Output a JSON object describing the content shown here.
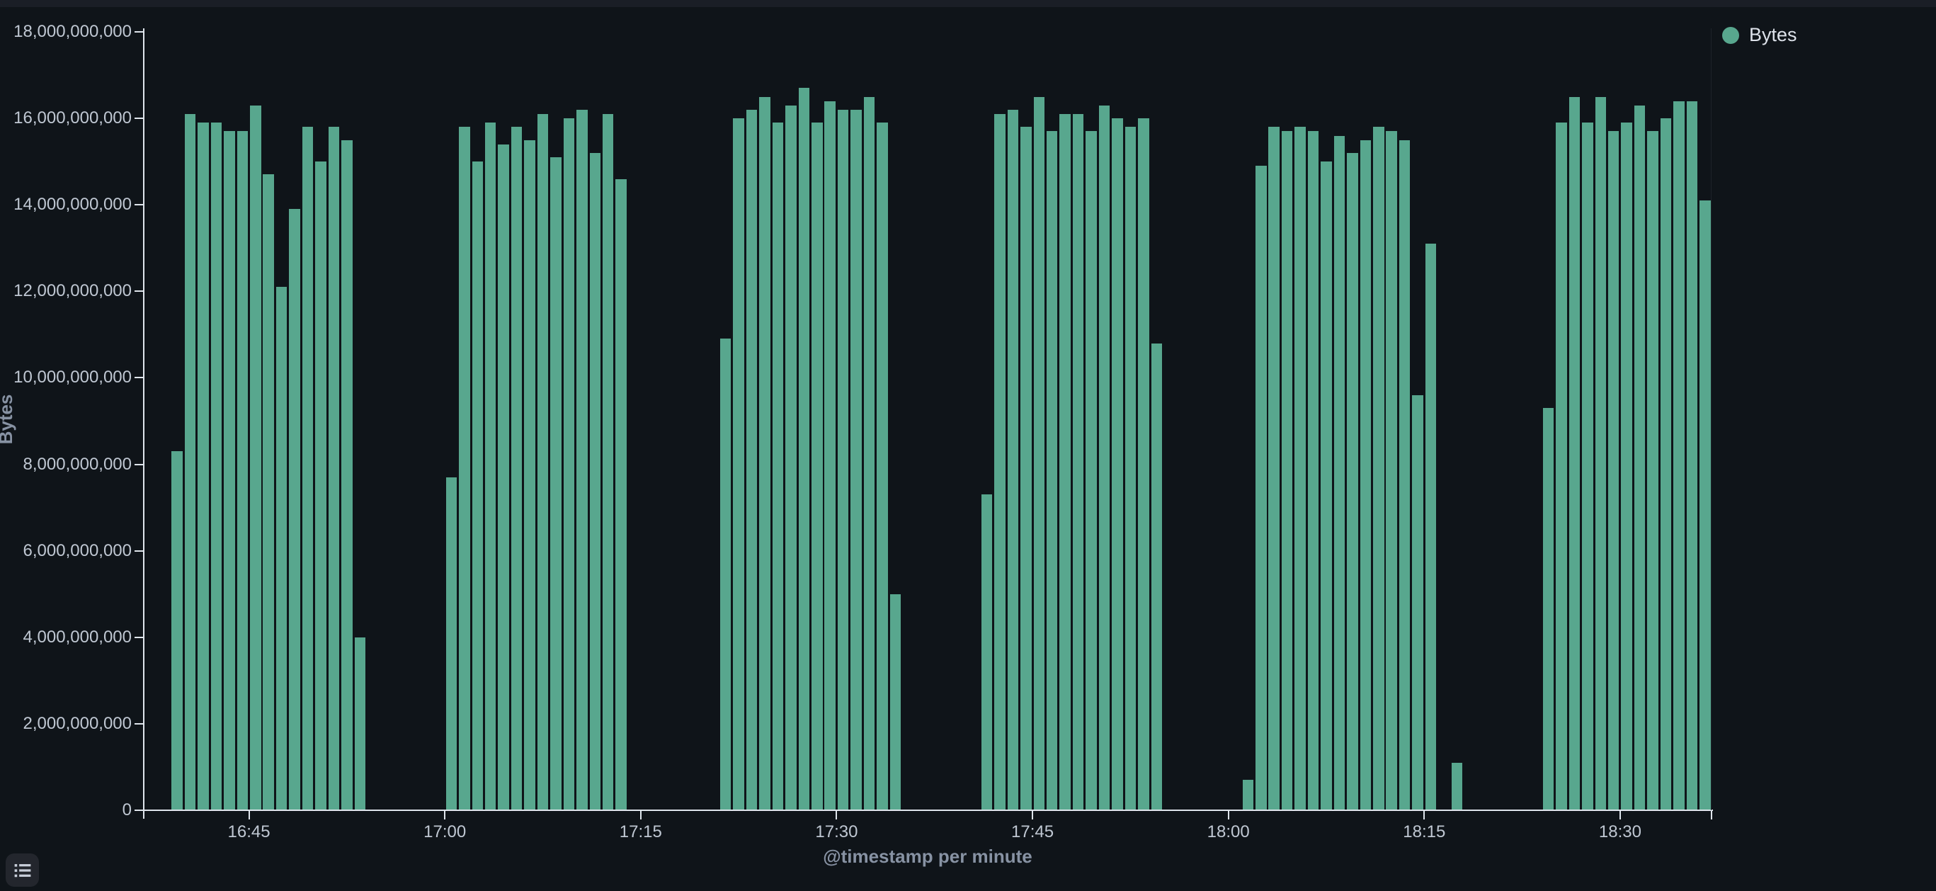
{
  "page": {
    "background": "#0f1419",
    "top_strip_color": "#1a1e26"
  },
  "colors": {
    "bar": "#58a78e",
    "axis_line": "#dfe5ec",
    "tick_label": "#bfc7d2",
    "axis_title": "#8792a3",
    "legend_text": "#dde2ea",
    "button_bg": "#23262d",
    "icon": "#c9cfda"
  },
  "legend": {
    "label": "Bytes",
    "dot_icon": "legend-series-dot-icon"
  },
  "toolbar": {
    "legend_toggle_icon": "list-icon"
  },
  "chart_data": {
    "type": "bar",
    "title": "",
    "xlabel": "@timestamp per minute",
    "ylabel": "Bytes",
    "ylim": [
      0,
      18000000000
    ],
    "grid": false,
    "legend_position": "top-right",
    "x_domain": {
      "start": "16:37",
      "end": "18:37"
    },
    "y_ticks": [
      {
        "value": 0,
        "label": "0"
      },
      {
        "value": 2000000000,
        "label": "2,000,000,000"
      },
      {
        "value": 4000000000,
        "label": "4,000,000,000"
      },
      {
        "value": 6000000000,
        "label": "6,000,000,000"
      },
      {
        "value": 8000000000,
        "label": "8,000,000,000"
      },
      {
        "value": 10000000000,
        "label": "10,000,000,000"
      },
      {
        "value": 12000000000,
        "label": "12,000,000,000"
      },
      {
        "value": 14000000000,
        "label": "14,000,000,000"
      },
      {
        "value": 16000000000,
        "label": "16,000,000,000"
      },
      {
        "value": 18000000000,
        "label": "18,000,000,000"
      }
    ],
    "x_ticks": [
      "16:45",
      "17:00",
      "17:15",
      "17:30",
      "17:45",
      "18:00",
      "18:15",
      "18:30"
    ],
    "series": [
      {
        "name": "Bytes",
        "points": [
          {
            "t": "16:39",
            "v": 8300000000
          },
          {
            "t": "16:40",
            "v": 16100000000
          },
          {
            "t": "16:41",
            "v": 15900000000
          },
          {
            "t": "16:42",
            "v": 15900000000
          },
          {
            "t": "16:43",
            "v": 15700000000
          },
          {
            "t": "16:44",
            "v": 15700000000
          },
          {
            "t": "16:45",
            "v": 16300000000
          },
          {
            "t": "16:46",
            "v": 14700000000
          },
          {
            "t": "16:47",
            "v": 12100000000
          },
          {
            "t": "16:48",
            "v": 13900000000
          },
          {
            "t": "16:49",
            "v": 15800000000
          },
          {
            "t": "16:50",
            "v": 15000000000
          },
          {
            "t": "16:51",
            "v": 15800000000
          },
          {
            "t": "16:52",
            "v": 15500000000
          },
          {
            "t": "16:53",
            "v": 4000000000
          },
          {
            "t": "17:00",
            "v": 7700000000
          },
          {
            "t": "17:01",
            "v": 15800000000
          },
          {
            "t": "17:02",
            "v": 15000000000
          },
          {
            "t": "17:03",
            "v": 15900000000
          },
          {
            "t": "17:04",
            "v": 15400000000
          },
          {
            "t": "17:05",
            "v": 15800000000
          },
          {
            "t": "17:06",
            "v": 15500000000
          },
          {
            "t": "17:07",
            "v": 16100000000
          },
          {
            "t": "17:08",
            "v": 15100000000
          },
          {
            "t": "17:09",
            "v": 16000000000
          },
          {
            "t": "17:10",
            "v": 16200000000
          },
          {
            "t": "17:11",
            "v": 15200000000
          },
          {
            "t": "17:12",
            "v": 16100000000
          },
          {
            "t": "17:13",
            "v": 14600000000
          },
          {
            "t": "17:21",
            "v": 10900000000
          },
          {
            "t": "17:22",
            "v": 16000000000
          },
          {
            "t": "17:23",
            "v": 16200000000
          },
          {
            "t": "17:24",
            "v": 16500000000
          },
          {
            "t": "17:25",
            "v": 15900000000
          },
          {
            "t": "17:26",
            "v": 16300000000
          },
          {
            "t": "17:27",
            "v": 16700000000
          },
          {
            "t": "17:28",
            "v": 15900000000
          },
          {
            "t": "17:29",
            "v": 16400000000
          },
          {
            "t": "17:30",
            "v": 16200000000
          },
          {
            "t": "17:31",
            "v": 16200000000
          },
          {
            "t": "17:32",
            "v": 16500000000
          },
          {
            "t": "17:33",
            "v": 15900000000
          },
          {
            "t": "17:34",
            "v": 5000000000
          },
          {
            "t": "17:41",
            "v": 7300000000
          },
          {
            "t": "17:42",
            "v": 16100000000
          },
          {
            "t": "17:43",
            "v": 16200000000
          },
          {
            "t": "17:44",
            "v": 15800000000
          },
          {
            "t": "17:45",
            "v": 16500000000
          },
          {
            "t": "17:46",
            "v": 15700000000
          },
          {
            "t": "17:47",
            "v": 16100000000
          },
          {
            "t": "17:48",
            "v": 16100000000
          },
          {
            "t": "17:49",
            "v": 15700000000
          },
          {
            "t": "17:50",
            "v": 16300000000
          },
          {
            "t": "17:51",
            "v": 16000000000
          },
          {
            "t": "17:52",
            "v": 15800000000
          },
          {
            "t": "17:53",
            "v": 16000000000
          },
          {
            "t": "17:54",
            "v": 10800000000
          },
          {
            "t": "18:01",
            "v": 700000000
          },
          {
            "t": "18:02",
            "v": 14900000000
          },
          {
            "t": "18:03",
            "v": 15800000000
          },
          {
            "t": "18:04",
            "v": 15700000000
          },
          {
            "t": "18:05",
            "v": 15800000000
          },
          {
            "t": "18:06",
            "v": 15700000000
          },
          {
            "t": "18:07",
            "v": 15000000000
          },
          {
            "t": "18:08",
            "v": 15600000000
          },
          {
            "t": "18:09",
            "v": 15200000000
          },
          {
            "t": "18:10",
            "v": 15500000000
          },
          {
            "t": "18:11",
            "v": 15800000000
          },
          {
            "t": "18:12",
            "v": 15700000000
          },
          {
            "t": "18:13",
            "v": 15500000000
          },
          {
            "t": "18:14",
            "v": 9600000000
          },
          {
            "t": "18:15",
            "v": 13100000000
          },
          {
            "t": "18:17",
            "v": 1100000000
          },
          {
            "t": "18:24",
            "v": 9300000000
          },
          {
            "t": "18:25",
            "v": 15900000000
          },
          {
            "t": "18:26",
            "v": 16500000000
          },
          {
            "t": "18:27",
            "v": 15900000000
          },
          {
            "t": "18:28",
            "v": 16500000000
          },
          {
            "t": "18:29",
            "v": 15700000000
          },
          {
            "t": "18:30",
            "v": 15900000000
          },
          {
            "t": "18:31",
            "v": 16300000000
          },
          {
            "t": "18:32",
            "v": 15700000000
          },
          {
            "t": "18:33",
            "v": 16000000000
          },
          {
            "t": "18:34",
            "v": 16400000000
          },
          {
            "t": "18:35",
            "v": 16400000000
          },
          {
            "t": "18:36",
            "v": 14100000000
          }
        ]
      }
    ]
  }
}
